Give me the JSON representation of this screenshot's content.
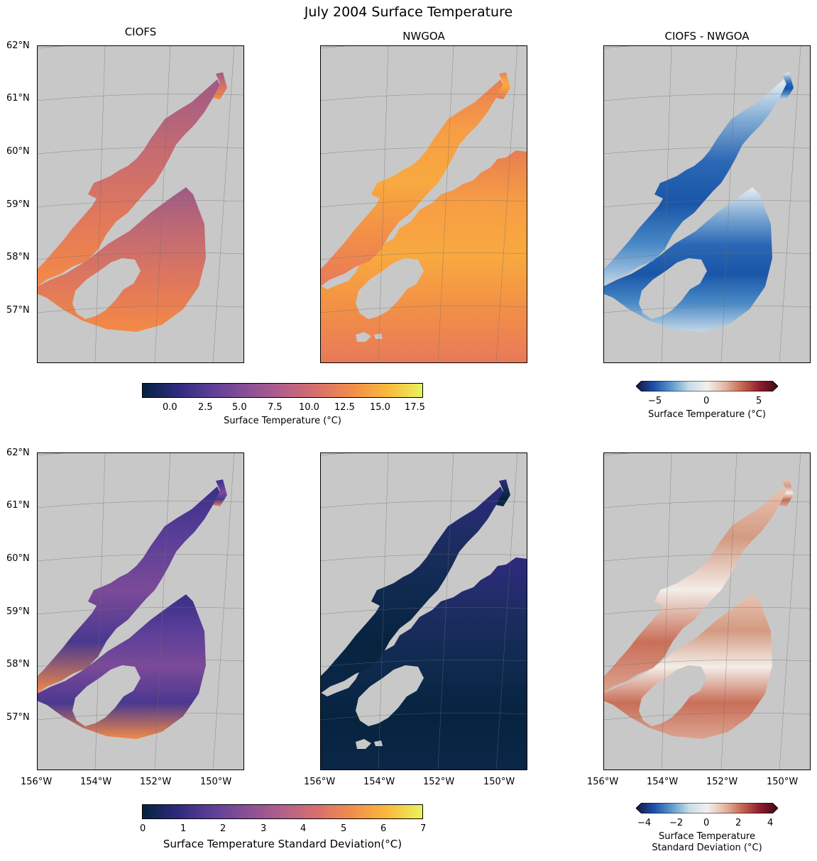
{
  "figure": {
    "title": "July 2004 Surface Temperature"
  },
  "columns": [
    "CIOFS",
    "NWGOA",
    "CIOFS - NWGOA"
  ],
  "lat_ticks": [
    "62°N",
    "61°N",
    "60°N",
    "59°N",
    "58°N",
    "57°N"
  ],
  "lon_ticks": [
    "156°W",
    "154°W",
    "152°W",
    "150°W"
  ],
  "colorbars": {
    "mean": {
      "label": "Surface Temperature (°C)",
      "ticks": [
        "0.0",
        "2.5",
        "5.0",
        "7.5",
        "10.0",
        "12.5",
        "15.0",
        "17.5"
      ],
      "range": [
        -2,
        18
      ],
      "colormap": "thermal"
    },
    "mean_diff": {
      "label": "Surface Temperature (°C)",
      "ticks": [
        "−5",
        "0",
        "5"
      ],
      "range": [
        -6.5,
        6.5
      ],
      "colormap": "balance"
    },
    "std": {
      "label": "Surface Temperature Standard Deviation(°C)",
      "ticks": [
        "0",
        "1",
        "2",
        "3",
        "4",
        "5",
        "6",
        "7"
      ],
      "range": [
        0,
        7
      ],
      "colormap": "thermal"
    },
    "std_diff": {
      "label_line1": "Surface Temperature",
      "label_line2": "Standard Deviation (°C)",
      "ticks": [
        "−4",
        "−2",
        "0",
        "2",
        "4"
      ],
      "range": [
        -4,
        4
      ],
      "colormap": "balance"
    }
  },
  "colors": {
    "land": "#c8c8c8",
    "ocean_background": "#ffffff",
    "gridline": "#6e6e6e"
  }
}
